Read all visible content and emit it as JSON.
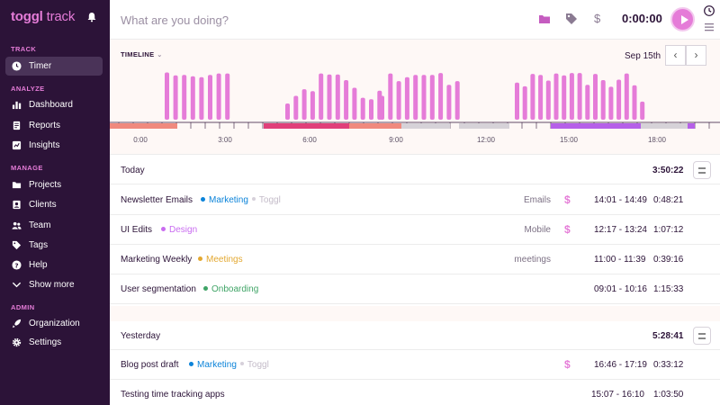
{
  "app": {
    "logo_bold": "toggl",
    "logo_light": "track"
  },
  "sidebar": {
    "sections": [
      {
        "label": "TRACK",
        "items": [
          {
            "label": "Timer",
            "icon": "clock-icon",
            "active": true
          }
        ]
      },
      {
        "label": "ANALYZE",
        "items": [
          {
            "label": "Dashboard",
            "icon": "bar-chart-icon"
          },
          {
            "label": "Reports",
            "icon": "report-icon"
          },
          {
            "label": "Insights",
            "icon": "insights-icon"
          }
        ]
      },
      {
        "label": "MANAGE",
        "items": [
          {
            "label": "Projects",
            "icon": "folder-icon"
          },
          {
            "label": "Clients",
            "icon": "client-icon"
          },
          {
            "label": "Team",
            "icon": "team-icon"
          },
          {
            "label": "Tags",
            "icon": "tag-icon"
          },
          {
            "label": "Help",
            "icon": "help-icon"
          },
          {
            "label": "Show more",
            "icon": "chevron-down-icon"
          }
        ]
      },
      {
        "label": "ADMIN",
        "items": [
          {
            "label": "Organization",
            "icon": "rocket-icon"
          },
          {
            "label": "Settings",
            "icon": "gear-icon"
          }
        ]
      }
    ]
  },
  "header": {
    "placeholder": "What are you doing?",
    "timer": "0:00:00"
  },
  "timeline": {
    "label": "TIMELINE",
    "date": "Sep 15th",
    "prev": "‹",
    "next": "›",
    "ticks": [
      "0:00",
      "3:00",
      "6:00",
      "9:00",
      "12:00",
      "15:00",
      "18:00"
    ],
    "activity_levels": [
      0.99,
      0.93,
      0.94,
      0.91,
      0.89,
      0.94,
      0.97,
      0.97,
      0.34,
      0.5,
      0.64,
      0.6,
      0.97,
      0.95,
      0.95,
      0.83,
      0.67,
      0.46,
      0.43,
      0.61,
      0.5,
      0.97,
      0.81,
      0.89,
      0.94,
      0.94,
      0.94,
      0.98,
      0.73,
      0.81,
      0.78,
      0.7,
      0.96,
      0.94,
      0.82,
      0.97,
      0.93,
      0.98,
      0.98,
      0.73,
      0.96,
      0.83,
      0.69,
      0.84,
      0.97,
      0.72,
      0.38
    ]
  },
  "colors": {
    "accent": "#e57cd8",
    "sidebar_bg": "#2c1338",
    "marketing": "#0b83d9",
    "design": "#c96cf0",
    "meetings": "#e3a831",
    "onboarding": "#3fa466"
  },
  "days": [
    {
      "title": "Today",
      "total": "3:50:22",
      "entries": [
        {
          "desc": "Newsletter Emails",
          "project": "Marketing",
          "project_color": "#0b83d9",
          "client": "Toggl",
          "tag": "Emails",
          "billable": "$",
          "range": "14:01 - 14:49",
          "duration": "0:48:21"
        },
        {
          "desc": "UI Edits",
          "project": "Design",
          "project_color": "#c96cf0",
          "client": "",
          "tag": "Mobile",
          "billable": "$",
          "range": "12:17 - 13:24",
          "duration": "1:07:12"
        },
        {
          "desc": "Marketing Weekly",
          "project": "Meetings",
          "project_color": "#e3a831",
          "client": "",
          "tag": "meetings",
          "billable": "",
          "range": "11:00 - 11:39",
          "duration": "0:39:16"
        },
        {
          "desc": "User segmentation",
          "project": "Onboarding",
          "project_color": "#3fa466",
          "client": "",
          "tag": "",
          "billable": "",
          "range": "09:01 - 10:16",
          "duration": "1:15:33"
        }
      ]
    },
    {
      "title": "Yesterday",
      "total": "5:28:41",
      "entries": [
        {
          "desc": "Blog post draft",
          "project": "Marketing",
          "project_color": "#0b83d9",
          "client": "Toggl",
          "tag": "",
          "billable": "$",
          "range": "16:46 - 17:19",
          "duration": "0:33:12"
        },
        {
          "desc": "Testing time tracking apps",
          "project": "",
          "project_color": "",
          "client": "",
          "tag": "",
          "billable": "",
          "range": "15:07 - 16:10",
          "duration": "1:03:50"
        }
      ]
    }
  ]
}
